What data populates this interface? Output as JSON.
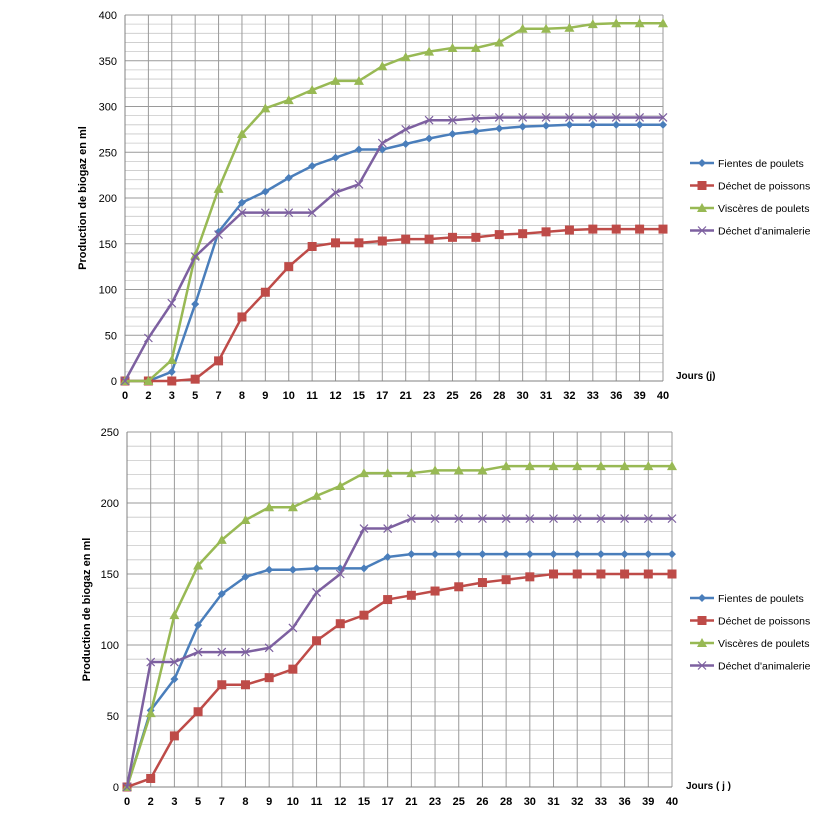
{
  "chart_data": [
    {
      "type": "line",
      "ylabel": "Production de biogaz en ml",
      "xlabel": "Jours (j)",
      "ylim": [
        0,
        400
      ],
      "ytick_step": 50,
      "grid": true,
      "legend": "right",
      "categories": [
        "0",
        "2",
        "3",
        "5",
        "7",
        "8",
        "9",
        "10",
        "11",
        "12",
        "15",
        "17",
        "21",
        "23",
        "25",
        "26",
        "28",
        "30",
        "31",
        "32",
        "33",
        "36",
        "39",
        "40"
      ],
      "series": [
        {
          "name": "Fientes de poulets",
          "color": "#4a7ebb",
          "marker": "diamond",
          "values": [
            0,
            0,
            10,
            84,
            163,
            195,
            207,
            222,
            235,
            244,
            253,
            253,
            259,
            265,
            270,
            273,
            276,
            278,
            279,
            280,
            280,
            280,
            280,
            280
          ]
        },
        {
          "name": "Déchet de poissons",
          "color": "#be4b48",
          "marker": "square",
          "values": [
            0,
            0,
            0,
            2,
            22,
            70,
            97,
            125,
            147,
            151,
            151,
            153,
            155,
            155,
            157,
            157,
            160,
            161,
            163,
            165,
            166,
            166,
            166,
            166
          ]
        },
        {
          "name": "Viscères de poulets",
          "color": "#98b954",
          "marker": "triangle",
          "values": [
            0,
            0,
            23,
            137,
            210,
            270,
            298,
            307,
            318,
            328,
            328,
            344,
            354,
            360,
            364,
            364,
            370,
            385,
            385,
            386,
            390,
            391,
            391,
            391
          ]
        },
        {
          "name": "Déchet d'animalerie",
          "color": "#7d60a0",
          "marker": "x",
          "values": [
            0,
            47,
            85,
            136,
            160,
            184,
            184,
            184,
            184,
            206,
            215,
            260,
            275,
            285,
            285,
            287,
            288,
            288,
            288,
            288,
            288,
            288,
            288,
            288
          ]
        }
      ]
    },
    {
      "type": "line",
      "ylabel": "Production de biogaz en ml",
      "xlabel": "Jours ( j )",
      "ylim": [
        0,
        250
      ],
      "ytick_step": 50,
      "grid": true,
      "legend": "right",
      "categories": [
        "0",
        "2",
        "3",
        "5",
        "7",
        "8",
        "9",
        "10",
        "11",
        "12",
        "15",
        "17",
        "21",
        "23",
        "25",
        "26",
        "28",
        "30",
        "31",
        "32",
        "33",
        "36",
        "39",
        "40"
      ],
      "series": [
        {
          "name": "Fientes de poulets",
          "color": "#4a7ebb",
          "marker": "diamond",
          "values": [
            0,
            54,
            76,
            114,
            136,
            148,
            153,
            153,
            154,
            154,
            154,
            162,
            164,
            164,
            164,
            164,
            164,
            164,
            164,
            164,
            164,
            164,
            164,
            164
          ]
        },
        {
          "name": "Déchet de poissons",
          "color": "#be4b48",
          "marker": "square",
          "values": [
            0,
            6,
            36,
            53,
            72,
            72,
            77,
            83,
            103,
            115,
            121,
            132,
            135,
            138,
            141,
            144,
            146,
            148,
            150,
            150,
            150,
            150,
            150,
            150
          ]
        },
        {
          "name": "Viscères de poulets",
          "color": "#98b954",
          "marker": "triangle",
          "values": [
            0,
            52,
            121,
            156,
            174,
            188,
            197,
            197,
            205,
            212,
            221,
            221,
            221,
            223,
            223,
            223,
            226,
            226,
            226,
            226,
            226,
            226,
            226,
            226
          ]
        },
        {
          "name": "Déchet d'animalerie",
          "color": "#7d60a0",
          "marker": "x",
          "values": [
            0,
            88,
            88,
            95,
            95,
            95,
            98,
            112,
            137,
            150,
            182,
            182,
            189,
            189,
            189,
            189,
            189,
            189,
            189,
            189,
            189,
            189,
            189,
            189
          ]
        }
      ]
    }
  ]
}
